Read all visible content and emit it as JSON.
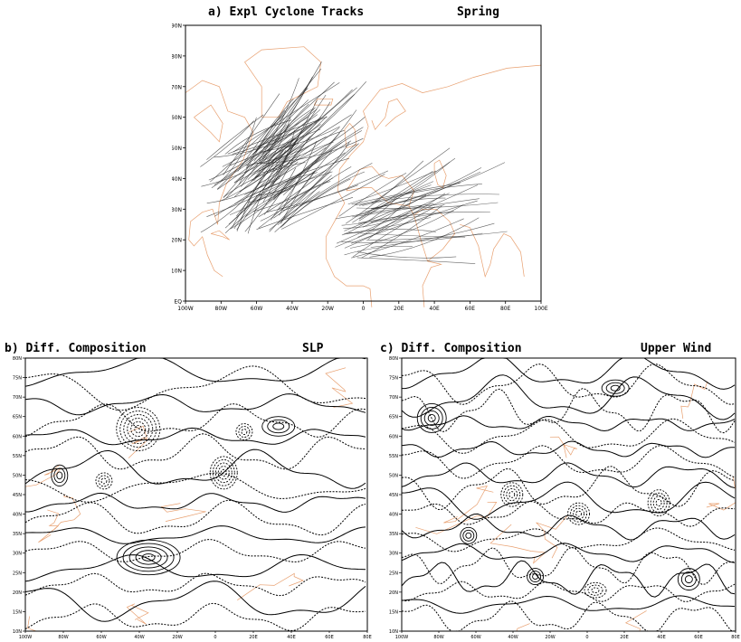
{
  "panel_a": {
    "title_left": "a) Expl Cyclone Tracks",
    "title_right": "Spring",
    "y_ticks": [
      "EQ",
      "10N",
      "20N",
      "30N",
      "40N",
      "50N",
      "60N",
      "70N",
      "80N",
      "90N"
    ],
    "x_ticks": [
      "100W",
      "80W",
      "60W",
      "40W",
      "20W",
      "0",
      "20E",
      "40E",
      "60E",
      "80E",
      "100E"
    ],
    "lon_range": [
      -100,
      110
    ],
    "lat_range": [
      0,
      90
    ],
    "coastline_color": "#e8a070",
    "track_color": "#222222"
  },
  "panel_b": {
    "title_left": "b) Diff. Composition",
    "title_right": "SLP",
    "y_ticks": [
      "10N",
      "15N",
      "20N",
      "25N",
      "30N",
      "35N",
      "40N",
      "45N",
      "50N",
      "55N",
      "60N",
      "65N",
      "70N",
      "75N",
      "80N"
    ],
    "x_ticks": [
      "100W",
      "80W",
      "60W",
      "40W",
      "20W",
      "0",
      "20E",
      "40E",
      "60E",
      "80E"
    ]
  },
  "panel_c": {
    "title_left": "c) Diff. Composition",
    "title_right": "Upper Wind",
    "y_ticks": [
      "10N",
      "15N",
      "20N",
      "25N",
      "30N",
      "35N",
      "40N",
      "45N",
      "50N",
      "55N",
      "60N",
      "65N",
      "70N",
      "75N",
      "80N"
    ],
    "x_ticks": [
      "100W",
      "80W",
      "60W",
      "40W",
      "20W",
      "0",
      "20E",
      "40E",
      "60E",
      "80E"
    ]
  }
}
